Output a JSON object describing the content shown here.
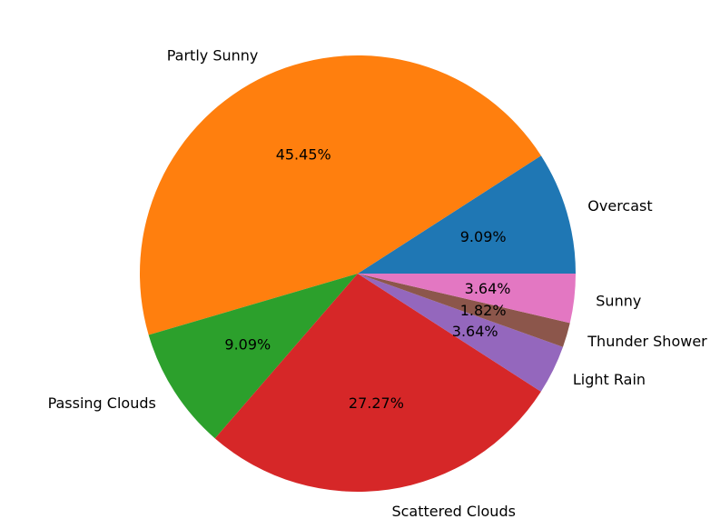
{
  "chart_data": {
    "type": "pie",
    "title": "",
    "categories": [
      "Overcast",
      "Partly Sunny",
      "Passing Clouds",
      "Scattered Clouds",
      "Light Rain",
      "Thunder Shower",
      "Sunny"
    ],
    "values": [
      9.09,
      45.45,
      9.09,
      27.27,
      3.64,
      1.82,
      3.64
    ],
    "percent_labels": [
      "9.09%",
      "45.45%",
      "9.09%",
      "27.27%",
      "3.64%",
      "1.82%",
      "3.64%"
    ],
    "colors": [
      "#1f77b4",
      "#ff7f0e",
      "#2ca02c",
      "#d62728",
      "#9467bd",
      "#8c564b",
      "#e377c2"
    ],
    "start_angle_deg": 0,
    "direction": "counterclockwise",
    "legend": "none"
  }
}
